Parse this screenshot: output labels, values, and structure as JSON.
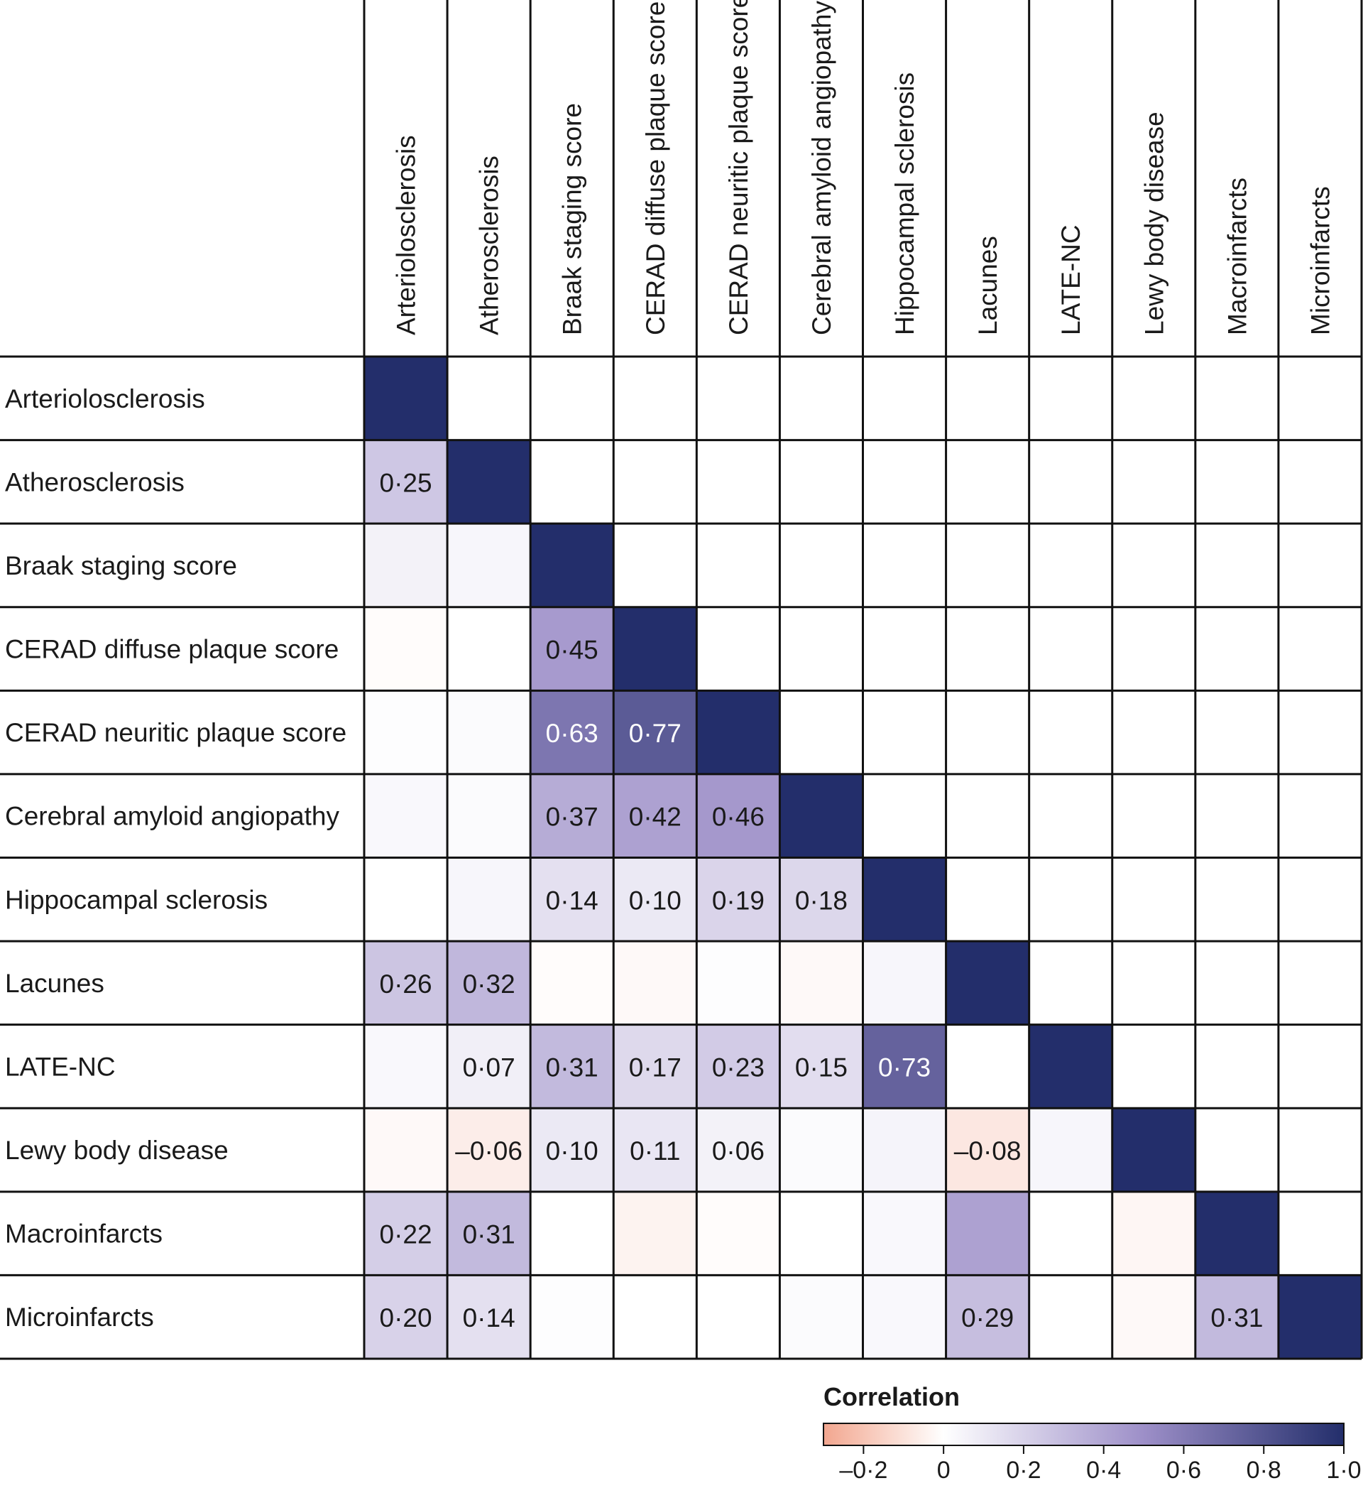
{
  "chart_data": {
    "type": "heatmap",
    "title": "",
    "variables": [
      "Arteriolosclerosis",
      "Atherosclerosis",
      "Braak staging score",
      "CERAD diffuse plaque score",
      "CERAD neuritic plaque score",
      "Cerebral amyloid angiopathy",
      "Hippocampal sclerosis",
      "Lacunes",
      "LATE-NC",
      "Lewy body disease",
      "Macroinfarcts",
      "Microinfarcts"
    ],
    "diagonal_value": 1.0,
    "cells": [
      {
        "row": 1,
        "col": 0,
        "value": 0.25,
        "label": "0·25"
      },
      {
        "row": 2,
        "col": 0,
        "value": 0.06,
        "label": ""
      },
      {
        "row": 2,
        "col": 1,
        "value": 0.04,
        "label": ""
      },
      {
        "row": 3,
        "col": 0,
        "value": -0.01,
        "label": ""
      },
      {
        "row": 3,
        "col": 1,
        "value": 0.0,
        "label": ""
      },
      {
        "row": 3,
        "col": 2,
        "value": 0.45,
        "label": "0·45"
      },
      {
        "row": 4,
        "col": 0,
        "value": 0.01,
        "label": ""
      },
      {
        "row": 4,
        "col": 1,
        "value": 0.02,
        "label": ""
      },
      {
        "row": 4,
        "col": 2,
        "value": 0.63,
        "label": "0·63"
      },
      {
        "row": 4,
        "col": 3,
        "value": 0.77,
        "label": "0·77"
      },
      {
        "row": 5,
        "col": 0,
        "value": 0.03,
        "label": ""
      },
      {
        "row": 5,
        "col": 1,
        "value": 0.02,
        "label": ""
      },
      {
        "row": 5,
        "col": 2,
        "value": 0.37,
        "label": "0·37"
      },
      {
        "row": 5,
        "col": 3,
        "value": 0.42,
        "label": "0·42"
      },
      {
        "row": 5,
        "col": 4,
        "value": 0.46,
        "label": "0·46"
      },
      {
        "row": 6,
        "col": 0,
        "value": 0.0,
        "label": ""
      },
      {
        "row": 6,
        "col": 1,
        "value": 0.04,
        "label": ""
      },
      {
        "row": 6,
        "col": 2,
        "value": 0.14,
        "label": "0·14"
      },
      {
        "row": 6,
        "col": 3,
        "value": 0.1,
        "label": "0·10"
      },
      {
        "row": 6,
        "col": 4,
        "value": 0.19,
        "label": "0·19"
      },
      {
        "row": 6,
        "col": 5,
        "value": 0.18,
        "label": "0·18"
      },
      {
        "row": 7,
        "col": 0,
        "value": 0.26,
        "label": "0·26"
      },
      {
        "row": 7,
        "col": 1,
        "value": 0.32,
        "label": "0·32"
      },
      {
        "row": 7,
        "col": 2,
        "value": -0.01,
        "label": ""
      },
      {
        "row": 7,
        "col": 3,
        "value": -0.02,
        "label": ""
      },
      {
        "row": 7,
        "col": 4,
        "value": 0.01,
        "label": ""
      },
      {
        "row": 7,
        "col": 5,
        "value": -0.02,
        "label": ""
      },
      {
        "row": 7,
        "col": 6,
        "value": 0.04,
        "label": ""
      },
      {
        "row": 8,
        "col": 0,
        "value": 0.03,
        "label": ""
      },
      {
        "row": 8,
        "col": 1,
        "value": 0.07,
        "label": "0·07"
      },
      {
        "row": 8,
        "col": 2,
        "value": 0.31,
        "label": "0·31"
      },
      {
        "row": 8,
        "col": 3,
        "value": 0.17,
        "label": "0·17"
      },
      {
        "row": 8,
        "col": 4,
        "value": 0.23,
        "label": "0·23"
      },
      {
        "row": 8,
        "col": 5,
        "value": 0.15,
        "label": "0·15"
      },
      {
        "row": 8,
        "col": 6,
        "value": 0.73,
        "label": "0·73"
      },
      {
        "row": 8,
        "col": 7,
        "value": 0.0,
        "label": ""
      },
      {
        "row": 9,
        "col": 0,
        "value": -0.02,
        "label": ""
      },
      {
        "row": 9,
        "col": 1,
        "value": -0.06,
        "label": "–0·06"
      },
      {
        "row": 9,
        "col": 2,
        "value": 0.1,
        "label": "0·10"
      },
      {
        "row": 9,
        "col": 3,
        "value": 0.11,
        "label": "0·11"
      },
      {
        "row": 9,
        "col": 4,
        "value": 0.06,
        "label": "0·06"
      },
      {
        "row": 9,
        "col": 5,
        "value": 0.02,
        "label": ""
      },
      {
        "row": 9,
        "col": 6,
        "value": 0.05,
        "label": ""
      },
      {
        "row": 9,
        "col": 7,
        "value": -0.08,
        "label": "–0·08"
      },
      {
        "row": 9,
        "col": 8,
        "value": 0.04,
        "label": ""
      },
      {
        "row": 10,
        "col": 0,
        "value": 0.22,
        "label": "0·22"
      },
      {
        "row": 10,
        "col": 1,
        "value": 0.31,
        "label": "0·31"
      },
      {
        "row": 10,
        "col": 2,
        "value": 0.0,
        "label": ""
      },
      {
        "row": 10,
        "col": 3,
        "value": -0.04,
        "label": ""
      },
      {
        "row": 10,
        "col": 4,
        "value": -0.01,
        "label": ""
      },
      {
        "row": 10,
        "col": 5,
        "value": 0.0,
        "label": ""
      },
      {
        "row": 10,
        "col": 6,
        "value": 0.03,
        "label": ""
      },
      {
        "row": 10,
        "col": 7,
        "value": 0.42,
        "label": ""
      },
      {
        "row": 10,
        "col": 8,
        "value": 0.0,
        "label": ""
      },
      {
        "row": 10,
        "col": 9,
        "value": -0.03,
        "label": ""
      },
      {
        "row": 11,
        "col": 0,
        "value": 0.2,
        "label": "0·20"
      },
      {
        "row": 11,
        "col": 1,
        "value": 0.14,
        "label": "0·14"
      },
      {
        "row": 11,
        "col": 2,
        "value": 0.01,
        "label": ""
      },
      {
        "row": 11,
        "col": 3,
        "value": 0.0,
        "label": ""
      },
      {
        "row": 11,
        "col": 4,
        "value": 0.0,
        "label": ""
      },
      {
        "row": 11,
        "col": 5,
        "value": 0.02,
        "label": ""
      },
      {
        "row": 11,
        "col": 6,
        "value": 0.03,
        "label": ""
      },
      {
        "row": 11,
        "col": 7,
        "value": 0.29,
        "label": "0·29"
      },
      {
        "row": 11,
        "col": 8,
        "value": 0.0,
        "label": ""
      },
      {
        "row": 11,
        "col": 9,
        "value": -0.02,
        "label": ""
      },
      {
        "row": 11,
        "col": 10,
        "value": 0.31,
        "label": "0·31"
      }
    ],
    "legend": {
      "title": "Correlation",
      "range": [
        -0.3,
        1.0
      ],
      "ticks": [
        {
          "value": -0.2,
          "label": "–0·2"
        },
        {
          "value": 0,
          "label": "0"
        },
        {
          "value": 0.2,
          "label": "0·2"
        },
        {
          "value": 0.4,
          "label": "0·4"
        },
        {
          "value": 0.6,
          "label": "0·6"
        },
        {
          "value": 0.8,
          "label": "0·8"
        },
        {
          "value": 1.0,
          "label": "1·0"
        }
      ]
    },
    "colors": {
      "negative": "#f2a68f",
      "zero": "#ffffff",
      "low_positive": "#9d8fc8",
      "high_positive": "#232e6b",
      "grid": "#111111"
    }
  }
}
